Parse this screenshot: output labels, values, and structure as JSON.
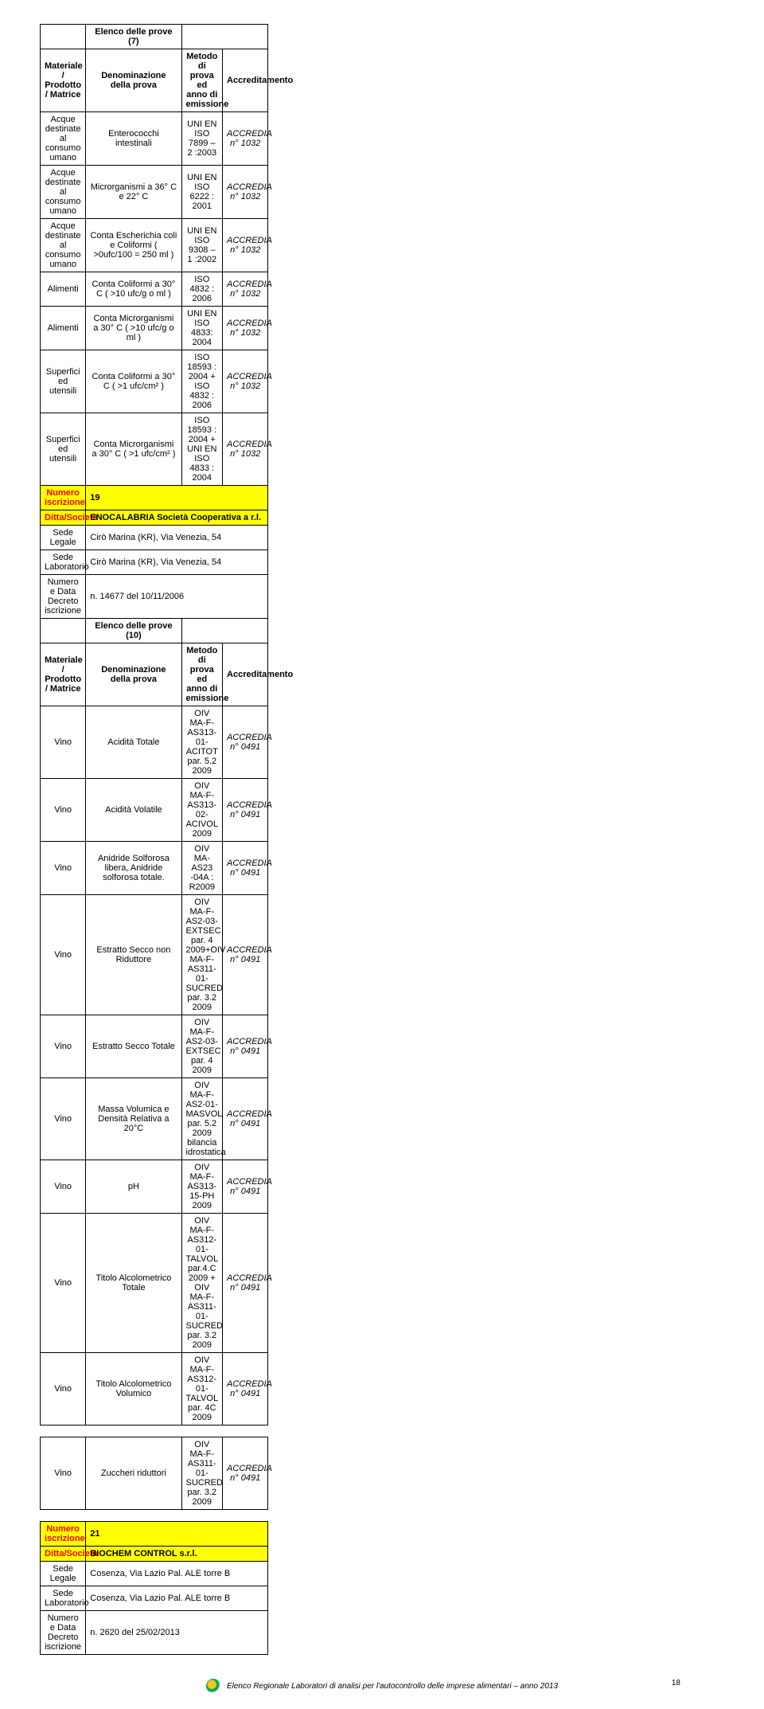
{
  "section1": {
    "title": "Elenco delle prove (7)",
    "headers": {
      "col1": "Materiale / Prodotto / Matrice",
      "col2": "Denominazione della prova",
      "col3": "Metodo di prova ed anno di emissione",
      "col4": "Accreditamento"
    },
    "rows": [
      {
        "c1": "Acque destinate al consumo umano",
        "c2": "Enterococchi intestinali",
        "c3": "UNI EN ISO 7899 – 2 :2003",
        "c4": "ACCREDIA n° 1032"
      },
      {
        "c1": "Acque destinate al consumo umano",
        "c2": "Microrganismi a 36° C e 22° C",
        "c3": "UNI EN ISO 6222 : 2001",
        "c4": "ACCREDIA n° 1032"
      },
      {
        "c1": "Acque destinate al consumo umano",
        "c2": "Conta Escherichia coli e Coliformi ( >0ufc/100 = 250 ml )",
        "c3": "UNI EN ISO 9308 – 1 :2002",
        "c4": "ACCREDIA n° 1032"
      },
      {
        "c1": "Alimenti",
        "c2": "Conta Coliformi a 30° C ( >10 ufc/g o ml )",
        "c3": "ISO 4832 : 2006",
        "c4": "ACCREDIA n° 1032"
      },
      {
        "c1": "Alimenti",
        "c2": "Conta Microrganismi a 30° C ( >10 ufc/g o ml )",
        "c3": "UNI EN ISO 4833: 2004",
        "c4": "ACCREDIA n° 1032"
      },
      {
        "c1": "Superfici ed utensili",
        "c2": "Conta Coliformi a 30° C ( >1 ufc/cm² )",
        "c3": "ISO 18593 : 2004 + ISO 4832 : 2006",
        "c4": "ACCREDIA n° 1032"
      },
      {
        "c1": "Superfici ed utensili",
        "c2": "Conta Microrganismi a 30° C ( >1 ufc/cm² )",
        "c3": "ISO 18593 : 2004 + UNI EN ISO 4833 : 2004",
        "c4": "ACCREDIA n° 1032"
      }
    ]
  },
  "entry19": {
    "num_label": "Numero iscrizione",
    "num_val": "19",
    "ditta_label": "Ditta/Società",
    "ditta_val": "ENOCALABRIA Società Cooperativa a r.l.",
    "sede_label": "Sede Legale",
    "sede_val": "Cirò Marina (KR), Via Venezia, 54",
    "lab_label": "Sede Laboratorio",
    "lab_val": "Cirò Marina (KR), Via Venezia, 54",
    "dec_label": "Numero e Data Decreto iscrizione",
    "dec_val": "n. 14677 del 10/11/2006"
  },
  "section2": {
    "title": "Elenco delle prove (10)",
    "headers": {
      "col1": "Materiale / Prodotto / Matrice",
      "col2": "Denominazione della prova",
      "col3": "Metodo di prova ed anno di emissione",
      "col4": "Accreditamento"
    },
    "rows": [
      {
        "c1": "Vino",
        "c2": "Acidità Totale",
        "c3": "OIV MA-F-AS313-01-ACITOT par. 5.2 2009",
        "c4": "ACCREDIA n° 0491"
      },
      {
        "c1": "Vino",
        "c2": "Acidità Volatile",
        "c3": "OIV MA-F-AS313-02-ACIVOL 2009",
        "c4": "ACCREDIA n° 0491"
      },
      {
        "c1": "Vino",
        "c2": "Anidride Solforosa libera, Anidride solforosa totale.",
        "c3": "OIV MA-AS23 -04A : R2009",
        "c4": "ACCREDIA n° 0491"
      },
      {
        "c1": "Vino",
        "c2": "Estratto Secco non Riduttore",
        "c3": "OIV MA-F-AS2-03-EXTSEC par. 4 2009+OIV MA-F-AS311-01-SUCRED par. 3.2 2009",
        "c4": "ACCREDIA n° 0491"
      },
      {
        "c1": "Vino",
        "c2": "Estratto Secco Totale",
        "c3": "OIV MA-F-AS2-03-EXTSEC par. 4 2009",
        "c4": "ACCREDIA n° 0491"
      },
      {
        "c1": "Vino",
        "c2": "Massa Volumica e Densità Relativa a 20°C",
        "c3": "OIV MA-F-AS2-01-MASVOL par. 5.2 2009 bilancia idrostatica",
        "c4": "ACCREDIA n° 0491"
      },
      {
        "c1": "Vino",
        "c2": "pH",
        "c3": "OIV MA-F-AS313-15-PH 2009",
        "c4": "ACCREDIA n° 0491"
      },
      {
        "c1": "Vino",
        "c2": "Titolo Alcolometrico Totale",
        "c3": "OIV MA-F-AS312-01-TALVOL par.4.C 2009 + OIV MA-F-AS311-01-SUCRED par. 3.2 2009",
        "c4": "ACCREDIA n° 0491"
      },
      {
        "c1": "Vino",
        "c2": "Titolo Alcolometrico Volumico",
        "c3": "OIV MA-F-AS312-01-TALVOL par. 4C 2009",
        "c4": "ACCREDIA n° 0491"
      },
      {
        "c1": "Vino",
        "c2": "Zuccheri riduttori",
        "c3": "OIV MA-F-AS311-01-SUCRED par. 3.2 2009",
        "c4": "ACCREDIA n° 0491"
      }
    ]
  },
  "entry21": {
    "num_label": "Numero iscrizione",
    "num_val": "21",
    "ditta_label": "Ditta/Società",
    "ditta_val": "BIOCHEM CONTROL s.r.l.",
    "sede_label": "Sede Legale",
    "sede_val": "Cosenza, Via Lazio Pal. ALE torre B",
    "lab_label": "Sede Laboratorio",
    "lab_val": "Cosenza, Via Lazio Pal. ALE torre B",
    "dec_label": "Numero e Data Decreto iscrizione",
    "dec_val": "n. 2620 del 25/02/2013"
  },
  "footer": {
    "text": "Elenco Regionale Laboratori di analisi per l'autocontrollo delle imprese alimentari – anno 2013",
    "page": "18"
  }
}
